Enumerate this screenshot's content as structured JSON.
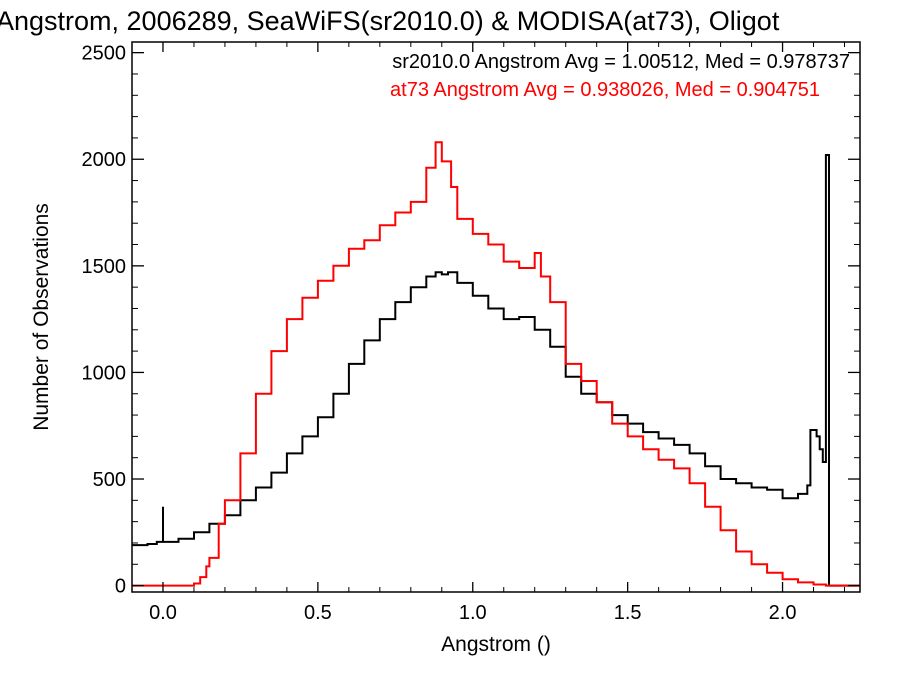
{
  "chart_data": {
    "type": "line",
    "step": true,
    "title": "Angstrom, 2006289, SeaWiFS(sr2010.0) & MODISA(at73), Oligot",
    "xlabel": "Angstrom ()",
    "ylabel": "Number of Observations",
    "xlim": [
      -0.1,
      2.25
    ],
    "ylim": [
      -30,
      2550
    ],
    "xticks": [
      0.0,
      0.5,
      1.0,
      1.5,
      2.0
    ],
    "xtick_labels": [
      "0.0",
      "0.5",
      "1.0",
      "1.5",
      "2.0"
    ],
    "yticks": [
      0,
      500,
      1000,
      1500,
      2000,
      2500
    ],
    "ytick_labels": [
      "0",
      "500",
      "1000",
      "1500",
      "2000",
      "2500"
    ],
    "grid": false,
    "legend": "top-right",
    "annotations": [
      {
        "text": "sr2010.0 Angstrom Avg = 1.00512, Med = 0.978737",
        "color": "#000000"
      },
      {
        "text": "at73 Angstrom Avg = 0.938026, Med = 0.904751",
        "color": "#ff0000"
      }
    ],
    "series": [
      {
        "name": "sr2010.0",
        "color": "#000000",
        "points": [
          [
            -0.1,
            190
          ],
          [
            -0.05,
            195
          ],
          [
            -0.02,
            205
          ],
          [
            0.0,
            240
          ],
          [
            0.0,
            370
          ],
          [
            0.0,
            205
          ],
          [
            0.05,
            220
          ],
          [
            0.1,
            250
          ],
          [
            0.15,
            290
          ],
          [
            0.2,
            330
          ],
          [
            0.25,
            400
          ],
          [
            0.3,
            460
          ],
          [
            0.35,
            530
          ],
          [
            0.4,
            620
          ],
          [
            0.45,
            700
          ],
          [
            0.5,
            790
          ],
          [
            0.55,
            900
          ],
          [
            0.6,
            1040
          ],
          [
            0.65,
            1150
          ],
          [
            0.7,
            1250
          ],
          [
            0.75,
            1330
          ],
          [
            0.8,
            1400
          ],
          [
            0.85,
            1450
          ],
          [
            0.88,
            1470
          ],
          [
            0.9,
            1460
          ],
          [
            0.92,
            1470
          ],
          [
            0.95,
            1420
          ],
          [
            1.0,
            1360
          ],
          [
            1.05,
            1300
          ],
          [
            1.1,
            1250
          ],
          [
            1.15,
            1260
          ],
          [
            1.2,
            1200
          ],
          [
            1.25,
            1120
          ],
          [
            1.3,
            980
          ],
          [
            1.35,
            900
          ],
          [
            1.4,
            860
          ],
          [
            1.45,
            800
          ],
          [
            1.5,
            760
          ],
          [
            1.55,
            720
          ],
          [
            1.6,
            690
          ],
          [
            1.65,
            660
          ],
          [
            1.7,
            620
          ],
          [
            1.75,
            560
          ],
          [
            1.8,
            500
          ],
          [
            1.85,
            480
          ],
          [
            1.9,
            460
          ],
          [
            1.95,
            450
          ],
          [
            2.0,
            410
          ],
          [
            2.05,
            430
          ],
          [
            2.08,
            470
          ],
          [
            2.09,
            730
          ],
          [
            2.11,
            700
          ],
          [
            2.12,
            640
          ],
          [
            2.13,
            580
          ],
          [
            2.14,
            2020
          ],
          [
            2.15,
            0
          ],
          [
            2.25,
            0
          ]
        ]
      },
      {
        "name": "at73",
        "color": "#ff0000",
        "points": [
          [
            -0.1,
            0
          ],
          [
            0.08,
            0
          ],
          [
            0.1,
            10
          ],
          [
            0.12,
            40
          ],
          [
            0.14,
            90
          ],
          [
            0.15,
            130
          ],
          [
            0.18,
            290
          ],
          [
            0.2,
            400
          ],
          [
            0.25,
            620
          ],
          [
            0.3,
            900
          ],
          [
            0.35,
            1100
          ],
          [
            0.4,
            1250
          ],
          [
            0.45,
            1350
          ],
          [
            0.5,
            1430
          ],
          [
            0.55,
            1500
          ],
          [
            0.6,
            1580
          ],
          [
            0.65,
            1620
          ],
          [
            0.7,
            1690
          ],
          [
            0.75,
            1750
          ],
          [
            0.8,
            1800
          ],
          [
            0.85,
            1960
          ],
          [
            0.88,
            2080
          ],
          [
            0.9,
            1990
          ],
          [
            0.93,
            1870
          ],
          [
            0.95,
            1720
          ],
          [
            1.0,
            1650
          ],
          [
            1.05,
            1600
          ],
          [
            1.1,
            1520
          ],
          [
            1.15,
            1490
          ],
          [
            1.2,
            1560
          ],
          [
            1.22,
            1450
          ],
          [
            1.25,
            1330
          ],
          [
            1.3,
            1040
          ],
          [
            1.35,
            960
          ],
          [
            1.4,
            860
          ],
          [
            1.45,
            760
          ],
          [
            1.5,
            700
          ],
          [
            1.55,
            640
          ],
          [
            1.6,
            590
          ],
          [
            1.65,
            550
          ],
          [
            1.7,
            480
          ],
          [
            1.75,
            370
          ],
          [
            1.8,
            260
          ],
          [
            1.85,
            160
          ],
          [
            1.9,
            100
          ],
          [
            1.95,
            60
          ],
          [
            2.0,
            30
          ],
          [
            2.05,
            15
          ],
          [
            2.1,
            5
          ],
          [
            2.14,
            0
          ],
          [
            2.25,
            0
          ]
        ]
      }
    ]
  }
}
